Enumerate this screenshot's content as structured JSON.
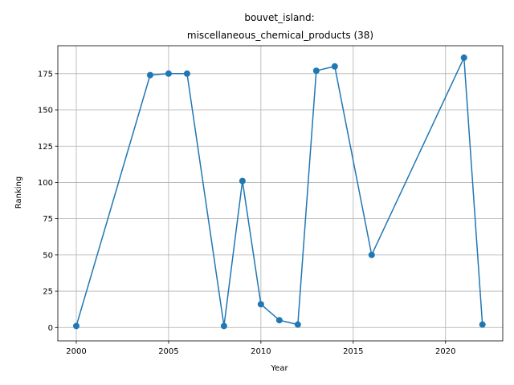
{
  "chart_data": {
    "type": "line",
    "title_line1": "bouvet_island:",
    "title_line2": "miscellaneous_chemical_products (38)",
    "xlabel": "Year",
    "ylabel": "Ranking",
    "xlim": [
      1999.0,
      2023.1
    ],
    "ylim": [
      -9.25,
      194.25
    ],
    "xticks": [
      2000,
      2005,
      2010,
      2015,
      2020
    ],
    "yticks": [
      0,
      25,
      50,
      75,
      100,
      125,
      150,
      175
    ],
    "grid": true,
    "line_color": "#1f77b4",
    "series": [
      {
        "x": [
          2000,
          2004,
          2005,
          2006,
          2008,
          2009,
          2010,
          2011,
          2012,
          2013,
          2014,
          2016,
          2021,
          2022
        ],
        "y": [
          1,
          174,
          175,
          175,
          1,
          101,
          16,
          5,
          2,
          177,
          180,
          50,
          186,
          2
        ]
      }
    ]
  }
}
